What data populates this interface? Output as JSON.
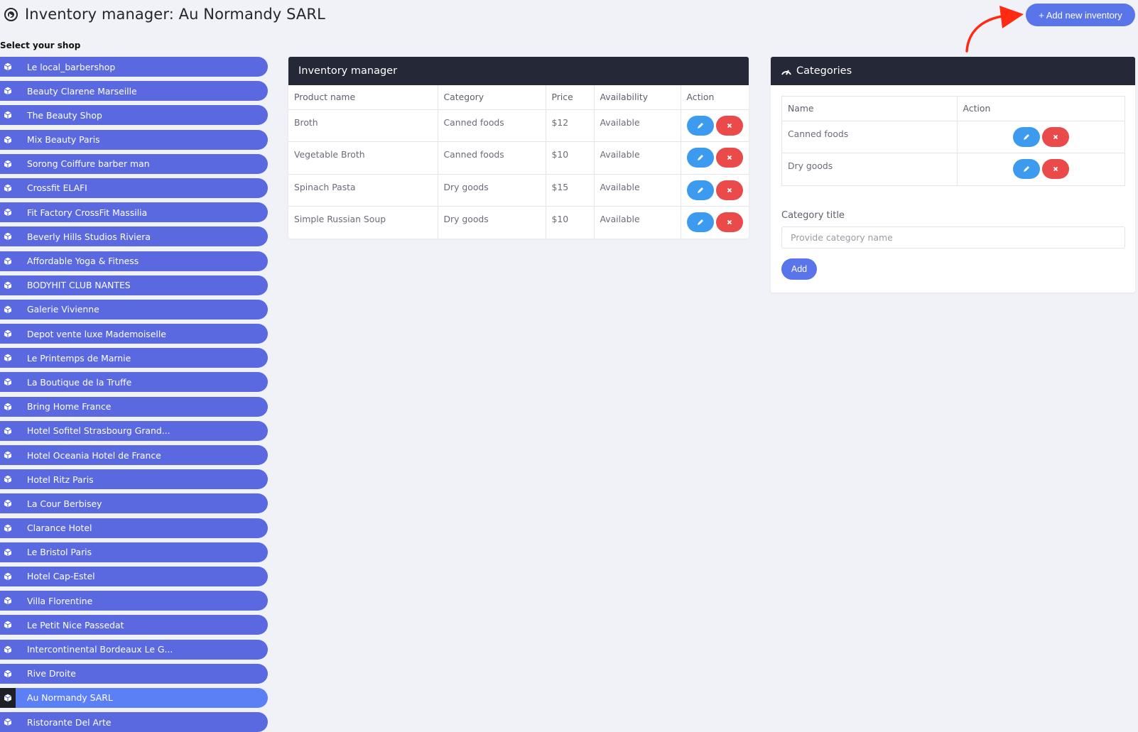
{
  "header": {
    "title": "Inventory manager: Au Normandy SARL",
    "add_button": "+ Add new inventory"
  },
  "sidebar": {
    "label": "Select your shop",
    "items": [
      {
        "label": "Le local_barbershop",
        "active": false
      },
      {
        "label": "Beauty Clarene Marseille",
        "active": false
      },
      {
        "label": "The Beauty Shop",
        "active": false
      },
      {
        "label": "Mix Beauty Paris",
        "active": false
      },
      {
        "label": "Sorong Coiffure barber man",
        "active": false
      },
      {
        "label": "Crossfit ELAFI",
        "active": false
      },
      {
        "label": "Fit Factory CrossFit Massilia",
        "active": false
      },
      {
        "label": "Beverly Hills Studios Riviera",
        "active": false
      },
      {
        "label": "Affordable Yoga & Fitness",
        "active": false
      },
      {
        "label": "BODYHIT CLUB NANTES",
        "active": false
      },
      {
        "label": "Galerie Vivienne",
        "active": false
      },
      {
        "label": "Depot vente luxe Mademoiselle",
        "active": false
      },
      {
        "label": "Le Printemps de Marnie",
        "active": false
      },
      {
        "label": "La Boutique de la Truffe",
        "active": false
      },
      {
        "label": "Bring Home France",
        "active": false
      },
      {
        "label": "Hotel Sofitel Strasbourg Grand...",
        "active": false
      },
      {
        "label": "Hotel Oceania Hotel de France",
        "active": false
      },
      {
        "label": "Hotel Ritz Paris",
        "active": false
      },
      {
        "label": "La Cour Berbisey",
        "active": false
      },
      {
        "label": "Clarance Hotel",
        "active": false
      },
      {
        "label": "Le Bristol Paris",
        "active": false
      },
      {
        "label": "Hotel Cap-Estel",
        "active": false
      },
      {
        "label": "Villa Florentine",
        "active": false
      },
      {
        "label": "Le Petit Nice Passedat",
        "active": false
      },
      {
        "label": "Intercontinental Bordeaux Le G...",
        "active": false
      },
      {
        "label": "Rive Droite",
        "active": false
      },
      {
        "label": "Au Normandy SARL",
        "active": true
      },
      {
        "label": "Ristorante Del Arte",
        "active": false
      }
    ]
  },
  "inventory": {
    "title": "Inventory manager",
    "columns": [
      "Product name",
      "Category",
      "Price",
      "Availability",
      "Action"
    ],
    "rows": [
      {
        "name": "Broth",
        "category": "Canned foods",
        "price": "$12",
        "availability": "Available"
      },
      {
        "name": "Vegetable Broth",
        "category": "Canned foods",
        "price": "$10",
        "availability": "Available"
      },
      {
        "name": "Spinach Pasta",
        "category": "Dry goods",
        "price": "$15",
        "availability": "Available"
      },
      {
        "name": "Simple Russian Soup",
        "category": "Dry goods",
        "price": "$10",
        "availability": "Available"
      }
    ]
  },
  "categories": {
    "title": "Categories",
    "columns": [
      "Name",
      "Action"
    ],
    "rows": [
      {
        "name": "Canned foods"
      },
      {
        "name": "Dry goods"
      }
    ],
    "form_label": "Category title",
    "input_placeholder": "Provide category name",
    "add_button": "Add"
  },
  "colors": {
    "accent": "#5a74ea",
    "sidebar_item": "#5a69e0",
    "sidebar_active": "#5b7ff5",
    "panel_header": "#252836",
    "edit": "#3d9bef",
    "delete": "#ea4a4a",
    "annotation_arrow": "#ff2a12"
  }
}
